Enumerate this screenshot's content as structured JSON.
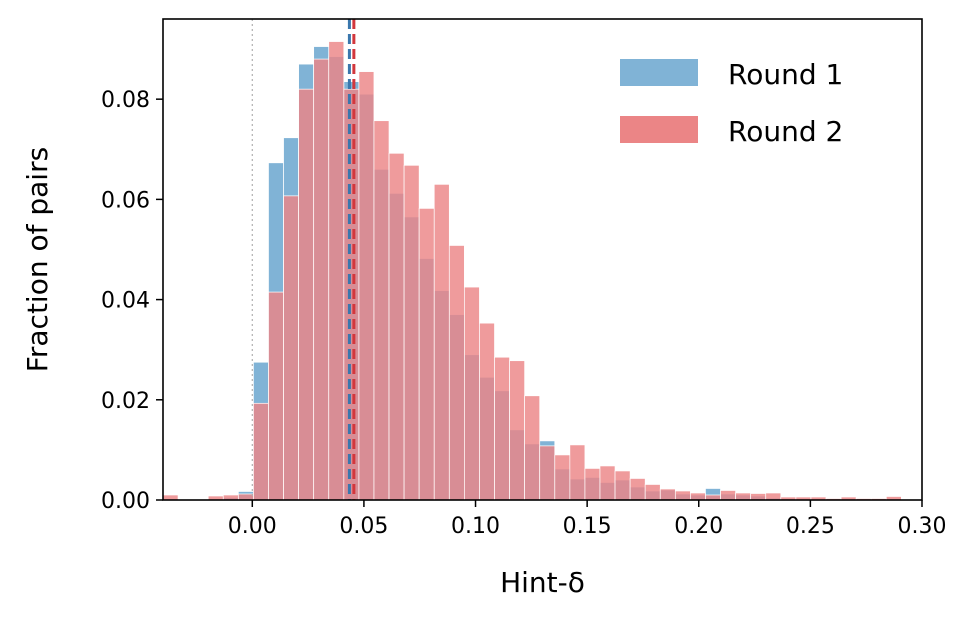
{
  "chart_data": {
    "type": "bar",
    "subtype": "overlaid-histogram",
    "xlabel": "Hint-δ",
    "ylabel": "Fraction of pairs",
    "xlim": [
      -0.04,
      0.3
    ],
    "ylim": [
      0,
      0.096
    ],
    "x_ticks": [
      0.0,
      0.05,
      0.1,
      0.15,
      0.2,
      0.25,
      0.3
    ],
    "x_tick_labels": [
      "0.00",
      "0.05",
      "0.10",
      "0.15",
      "0.20",
      "0.25",
      "0.30"
    ],
    "y_ticks": [
      0.0,
      0.02,
      0.04,
      0.06,
      0.08
    ],
    "y_tick_labels": [
      "0.00",
      "0.02",
      "0.04",
      "0.06",
      "0.08"
    ],
    "grid": false,
    "legend_position": "top-right",
    "bin_width": 0.00675,
    "bin_edges_start": -0.04,
    "reference_line_x": 0.0,
    "series": [
      {
        "name": "Round 1",
        "color": "#80b3d6",
        "mean_line_x": 0.0435,
        "mean_line_color": "#3a77ad",
        "values": [
          0.0,
          0.0,
          0.0,
          0.0,
          0.0005,
          0.0017,
          0.0275,
          0.0673,
          0.0723,
          0.087,
          0.0905,
          0.0885,
          0.0835,
          0.081,
          0.066,
          0.0612,
          0.0565,
          0.0482,
          0.0418,
          0.037,
          0.029,
          0.0245,
          0.0218,
          0.014,
          0.0112,
          0.0118,
          0.0062,
          0.0042,
          0.0045,
          0.0035,
          0.004,
          0.0026,
          0.0018,
          0.002,
          0.0012,
          0.001,
          0.0023,
          0.0012,
          0.001,
          0.0008,
          0.0004,
          0.0002,
          0.0001,
          0.0001,
          0.0
        ]
      },
      {
        "name": "Round 2",
        "color": "#eb8586",
        "mean_line_x": 0.0455,
        "mean_line_color": "#d2373d",
        "values": [
          0.001,
          0.0,
          0.0,
          0.0008,
          0.001,
          0.0012,
          0.0193,
          0.0415,
          0.0607,
          0.082,
          0.088,
          0.0915,
          0.082,
          0.0855,
          0.0757,
          0.0692,
          0.0668,
          0.0582,
          0.063,
          0.0508,
          0.0425,
          0.0353,
          0.0285,
          0.0278,
          0.0208,
          0.0108,
          0.009,
          0.011,
          0.0063,
          0.0068,
          0.0058,
          0.0043,
          0.0031,
          0.0022,
          0.0018,
          0.0014,
          0.001,
          0.0019,
          0.0014,
          0.0013,
          0.0014,
          0.0006,
          0.0006,
          0.0006,
          0.0003,
          0.0006,
          0.0003,
          0.0003,
          0.0007,
          0.0001
        ]
      }
    ]
  }
}
